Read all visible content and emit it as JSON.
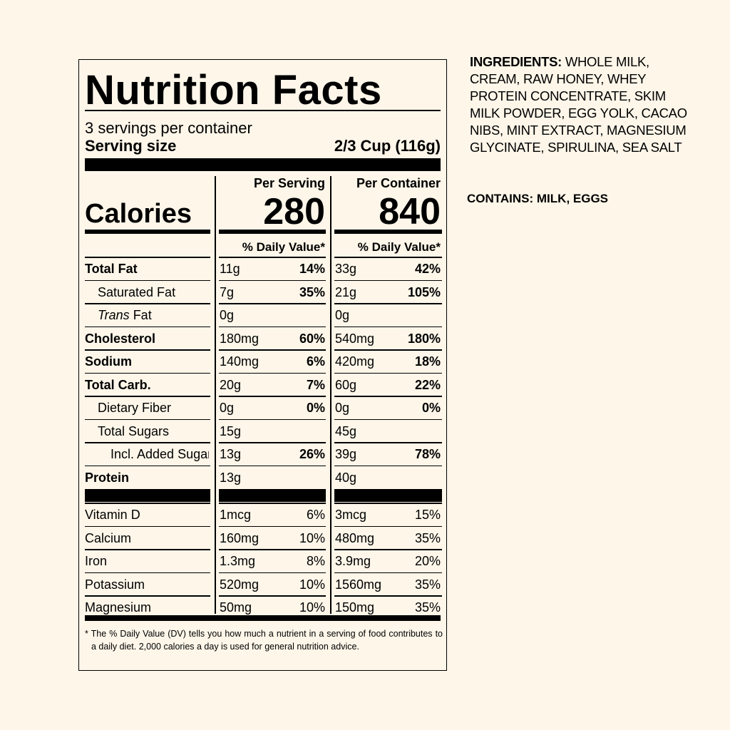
{
  "label": {
    "title": "Nutrition Facts",
    "servings_per_container": "3 servings per container",
    "serving_size_label": "Serving size",
    "serving_size_value": "2/3 Cup (116g)",
    "col_per_serving": "Per Serving",
    "col_per_container": "Per Container",
    "calories_label": "Calories",
    "calories_serving": "280",
    "calories_container": "840",
    "daily_value_header": "% Daily Value*",
    "nutrients": [
      {
        "name": "Total Fat",
        "serving_amount": "11g",
        "serving_dv": "14%",
        "container_amount": "33g",
        "container_dv": "42%"
      },
      {
        "name": "Saturated Fat",
        "serving_amount": "7g",
        "serving_dv": "35%",
        "container_amount": "21g",
        "container_dv": "105%"
      },
      {
        "name_italic": "Trans",
        "name_rest": " Fat",
        "serving_amount": "0g",
        "serving_dv": "",
        "container_amount": "0g",
        "container_dv": ""
      },
      {
        "name": "Cholesterol",
        "serving_amount": "180mg",
        "serving_dv": "60%",
        "container_amount": "540mg",
        "container_dv": "180%"
      },
      {
        "name": "Sodium",
        "serving_amount": "140mg",
        "serving_dv": "6%",
        "container_amount": "420mg",
        "container_dv": "18%"
      },
      {
        "name": "Total Carb.",
        "serving_amount": "20g",
        "serving_dv": "7%",
        "container_amount": "60g",
        "container_dv": "22%"
      },
      {
        "name": "Dietary Fiber",
        "serving_amount": "0g",
        "serving_dv": "0%",
        "container_amount": "0g",
        "container_dv": "0%"
      },
      {
        "name": "Total Sugars",
        "serving_amount": "15g",
        "serving_dv": "",
        "container_amount": "45g",
        "container_dv": ""
      },
      {
        "name": "Incl. Added Sugars",
        "serving_amount": "13g",
        "serving_dv": "26%",
        "container_amount": "39g",
        "container_dv": "78%"
      },
      {
        "name": "Protein",
        "serving_amount": "13g",
        "serving_dv": "",
        "container_amount": "40g",
        "container_dv": ""
      }
    ],
    "vitamins": [
      {
        "name": "Vitamin D",
        "serving_amount": "1mcg",
        "serving_dv": "6%",
        "container_amount": "3mcg",
        "container_dv": "15%"
      },
      {
        "name": "Calcium",
        "serving_amount": "160mg",
        "serving_dv": "10%",
        "container_amount": "480mg",
        "container_dv": "35%"
      },
      {
        "name": "Iron",
        "serving_amount": "1.3mg",
        "serving_dv": "8%",
        "container_amount": "3.9mg",
        "container_dv": "20%"
      },
      {
        "name": "Potassium",
        "serving_amount": "520mg",
        "serving_dv": "10%",
        "container_amount": "1560mg",
        "container_dv": "35%"
      },
      {
        "name": "Magnesium",
        "serving_amount": "50mg",
        "serving_dv": "10%",
        "container_amount": "150mg",
        "container_dv": "35%"
      }
    ],
    "footnote": "* The % Daily Value (DV) tells you how much a nutrient in a serving of food contributes to a daily diet. 2,000 calories a day is used for general nutrition advice."
  },
  "ingredients": {
    "label": "INGREDIENTS:",
    "text": " WHOLE MILK, CREAM, RAW HONEY, WHEY PROTEIN CONCENTRATE, SKIM MILK POWDER, EGG YOLK, CACAO NIBS, MINT EXTRACT, MAGNESIUM GLYCINATE, SPIRULINA, SEA SALT"
  },
  "contains": "CONTAINS: MILK, EGGS"
}
